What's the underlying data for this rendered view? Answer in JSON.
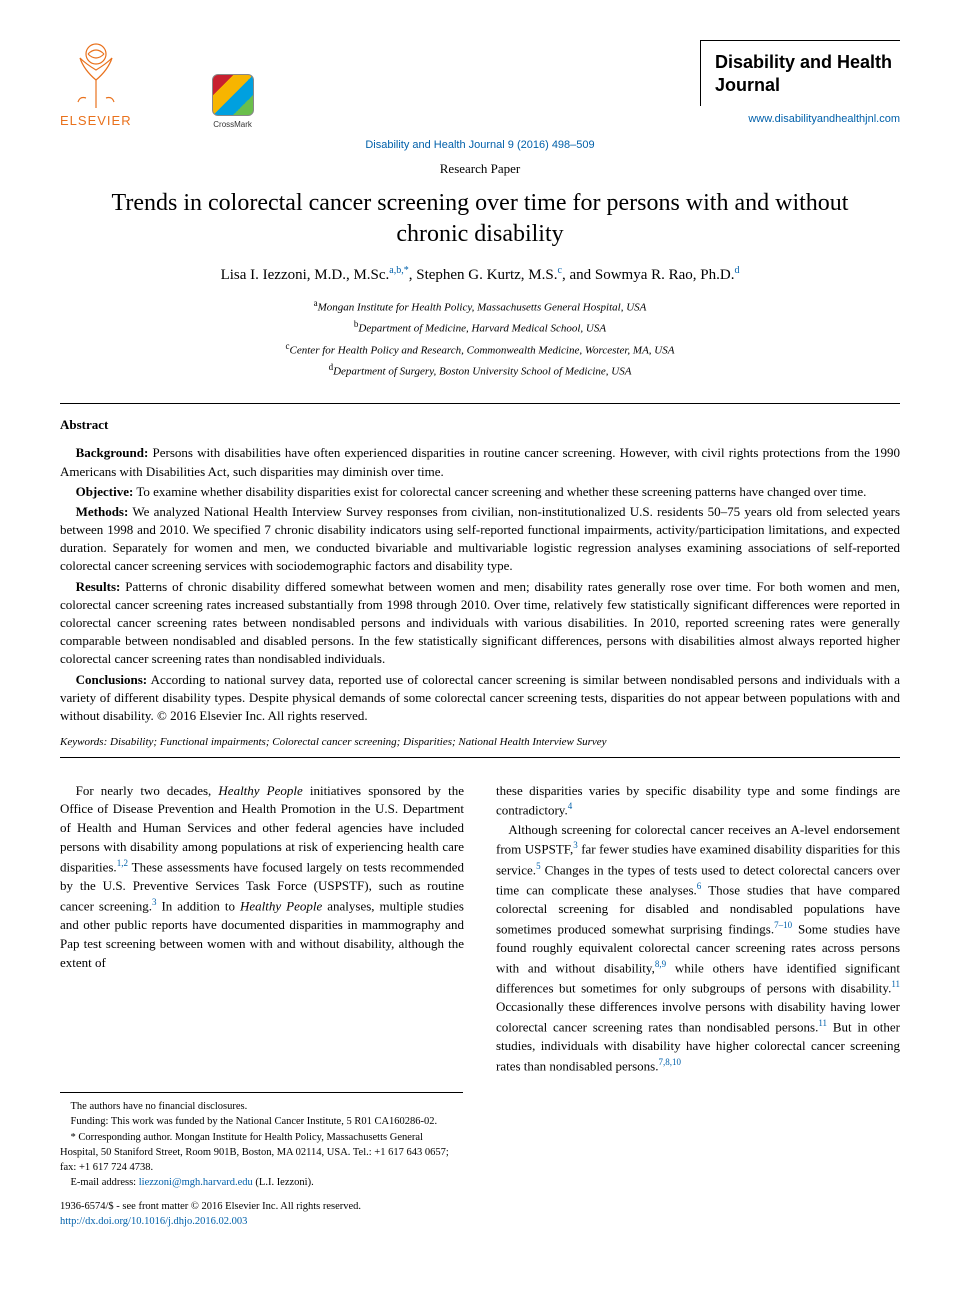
{
  "publisher": {
    "name": "ELSEVIER",
    "tree_color": "#e9711c"
  },
  "crossmark_label": "CrossMark",
  "journal": {
    "name": "Disability and Health Journal",
    "url": "www.disabilityandhealthjnl.com"
  },
  "citation": "Disability and Health Journal 9 (2016) 498–509",
  "paper_type": "Research Paper",
  "title": "Trends in colorectal cancer screening over time for persons with and without chronic disability",
  "authors_html": "Lisa I. Iezzoni, M.D., M.Sc.<sup>a,b,*</sup>, Stephen G. Kurtz, M.S.<sup>c</sup>, and Sowmya R. Rao, Ph.D.<sup>d</sup>",
  "affiliations": [
    {
      "sup": "a",
      "text": "Mongan Institute for Health Policy, Massachusetts General Hospital, USA"
    },
    {
      "sup": "b",
      "text": "Department of Medicine, Harvard Medical School, USA"
    },
    {
      "sup": "c",
      "text": "Center for Health Policy and Research, Commonwealth Medicine, Worcester, MA, USA"
    },
    {
      "sup": "d",
      "text": "Department of Surgery, Boston University School of Medicine, USA"
    }
  ],
  "abstract": {
    "heading": "Abstract",
    "background_label": "Background:",
    "background": "Persons with disabilities have often experienced disparities in routine cancer screening. However, with civil rights protections from the 1990 Americans with Disabilities Act, such disparities may diminish over time.",
    "objective_label": "Objective:",
    "objective": "To examine whether disability disparities exist for colorectal cancer screening and whether these screening patterns have changed over time.",
    "methods_label": "Methods:",
    "methods": "We analyzed National Health Interview Survey responses from civilian, non-institutionalized U.S. residents 50–75 years old from selected years between 1998 and 2010. We specified 7 chronic disability indicators using self-reported functional impairments, activity/participation limitations, and expected duration. Separately for women and men, we conducted bivariable and multivariable logistic regression analyses examining associations of self-reported colorectal cancer screening services with sociodemographic factors and disability type.",
    "results_label": "Results:",
    "results": "Patterns of chronic disability differed somewhat between women and men; disability rates generally rose over time. For both women and men, colorectal cancer screening rates increased substantially from 1998 through 2010. Over time, relatively few statistically significant differences were reported in colorectal cancer screening rates between nondisabled persons and individuals with various disabilities. In 2010, reported screening rates were generally comparable between nondisabled and disabled persons. In the few statistically significant differences, persons with disabilities almost always reported higher colorectal cancer screening rates than nondisabled individuals.",
    "conclusions_label": "Conclusions:",
    "conclusions": "According to national survey data, reported use of colorectal cancer screening is similar between nondisabled persons and individuals with a variety of different disability types. Despite physical demands of some colorectal cancer screening tests, disparities do not appear between populations with and without disability.   © 2016 Elsevier Inc. All rights reserved."
  },
  "keywords": {
    "label": "Keywords:",
    "text": "Disability; Functional impairments; Colorectal cancer screening; Disparities; National Health Interview Survey"
  },
  "body": {
    "left": "For nearly two decades, <em>Healthy People</em> initiatives sponsored by the Office of Disease Prevention and Health Promotion in the U.S. Department of Health and Human Services and other federal agencies have included persons with disability among populations at risk of experiencing health care disparities.<sup>1,2</sup> These assessments have focused largely on tests recommended by the U.S. Preventive Services Task Force (USPSTF), such as routine cancer screening.<sup>3</sup> In addition to <em>Healthy People</em> analyses, multiple studies and other public reports have documented disparities in mammography and Pap test screening between women with and without disability, although the extent of",
    "right": "these disparities varies by specific disability type and some findings are contradictory.<sup>4</sup><br>&nbsp;&nbsp;&nbsp;Although screening for colorectal cancer receives an A-level endorsement from USPSTF,<sup>3</sup> far fewer studies have examined disability disparities for this service.<sup>5</sup> Changes in the types of tests used to detect colorectal cancers over time can complicate these analyses.<sup>6</sup> Those studies that have compared colorectal screening for disabled and nondisabled populations have sometimes produced somewhat surprising findings.<sup>7–10</sup> Some studies have found roughly equivalent colorectal cancer screening rates across persons with and without disability,<sup>8,9</sup> while others have identified significant differences but sometimes for only subgroups of persons with disability.<sup>11</sup> Occasionally these differences involve persons with disability having lower colorectal cancer screening rates than nondisabled persons.<sup>11</sup> But in other studies, individuals with disability have higher colorectal cancer screening rates than nondisabled persons.<sup>7,8,10</sup>"
  },
  "footnotes": {
    "disclosures": "The authors have no financial disclosures.",
    "funding": "Funding: This work was funded by the National Cancer Institute, 5 R01 CA160286-02.",
    "corresponding": "* Corresponding author. Mongan Institute for Health Policy, Massachusetts General Hospital, 50 Staniford Street, Room 901B, Boston, MA 02114, USA. Tel.: +1 617 643 0657; fax: +1 617 724 4738.",
    "email_label": "E-mail address:",
    "email": "liezzoni@mgh.harvard.edu",
    "email_name": "(L.I. Iezzoni)."
  },
  "bottom": {
    "issn": "1936-6574/$ - see front matter © 2016 Elsevier Inc. All rights reserved.",
    "doi": "http://dx.doi.org/10.1016/j.dhjo.2016.02.003"
  },
  "colors": {
    "link": "#0060aa",
    "orange": "#e9711c"
  }
}
